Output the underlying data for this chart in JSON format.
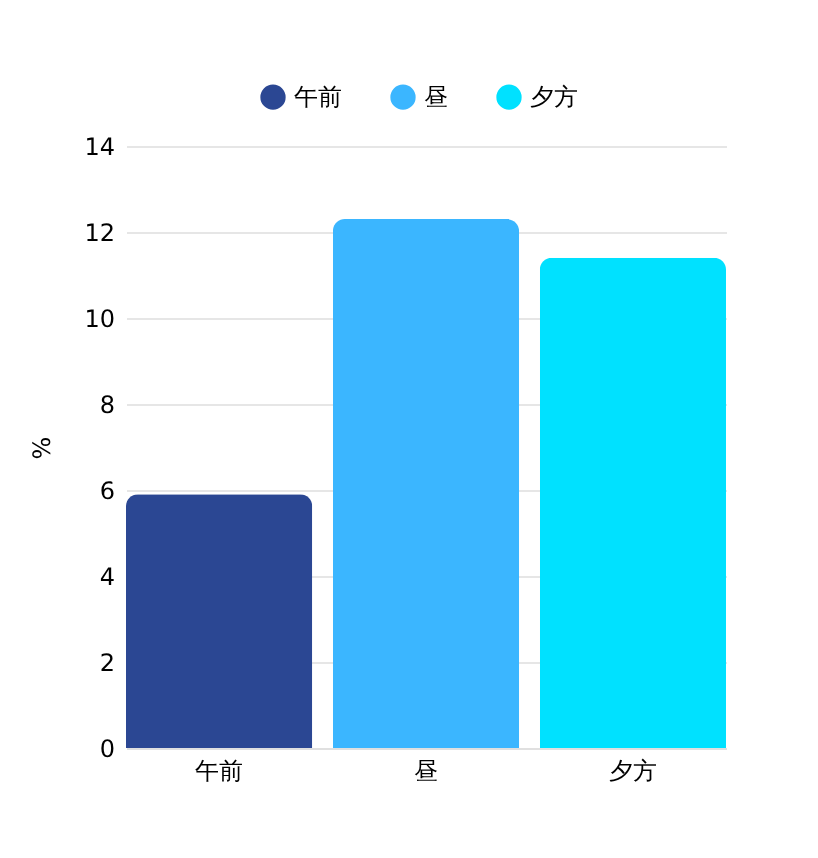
{
  "chart_data": {
    "type": "bar",
    "categories": [
      "午前",
      "昼",
      "夕方"
    ],
    "series": [
      {
        "name": "午前",
        "color": "#2b4793",
        "values": [
          5.9,
          null,
          null
        ]
      },
      {
        "name": "昼",
        "color": "#3bb6ff",
        "values": [
          null,
          12.3,
          null
        ]
      },
      {
        "name": "夕方",
        "color": "#00e1ff",
        "values": [
          null,
          null,
          11.4
        ]
      }
    ],
    "ylabel": "%",
    "ylim": [
      0,
      14
    ],
    "yticks": [
      0,
      2,
      4,
      6,
      8,
      10,
      12,
      14
    ],
    "grid": "y",
    "legend": "top"
  }
}
